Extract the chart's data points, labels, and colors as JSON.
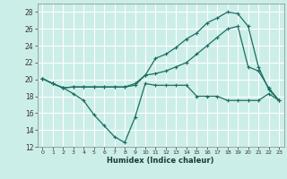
{
  "xlabel": "Humidex (Indice chaleur)",
  "bg_color": "#cceee8",
  "grid_color": "#ffffff",
  "line_color": "#1a6e64",
  "xlim": [
    -0.5,
    23.5
  ],
  "ylim": [
    12,
    29
  ],
  "xticks": [
    0,
    1,
    2,
    3,
    4,
    5,
    6,
    7,
    8,
    9,
    10,
    11,
    12,
    13,
    14,
    15,
    16,
    17,
    18,
    19,
    20,
    21,
    22,
    23
  ],
  "yticks": [
    12,
    14,
    16,
    18,
    20,
    22,
    24,
    26,
    28
  ],
  "series": [
    [
      20.1,
      19.5,
      19.0,
      18.3,
      17.5,
      15.8,
      14.5,
      13.2,
      12.5,
      15.5,
      19.5,
      19.3,
      19.3,
      19.3,
      19.3,
      18.0,
      18.0,
      18.0,
      17.5,
      17.5,
      17.5,
      17.5,
      18.3,
      17.5
    ],
    [
      20.1,
      19.5,
      19.0,
      19.1,
      19.1,
      19.1,
      19.1,
      19.1,
      19.1,
      19.5,
      20.5,
      22.5,
      23.0,
      23.8,
      24.8,
      25.5,
      26.7,
      27.3,
      28.0,
      27.8,
      26.3,
      21.5,
      18.8,
      17.5
    ],
    [
      20.1,
      19.5,
      19.0,
      19.1,
      19.1,
      19.1,
      19.1,
      19.1,
      19.1,
      19.3,
      20.5,
      20.7,
      21.0,
      21.5,
      22.0,
      23.0,
      24.0,
      25.0,
      26.0,
      26.3,
      21.5,
      21.0,
      19.0,
      17.5
    ]
  ]
}
